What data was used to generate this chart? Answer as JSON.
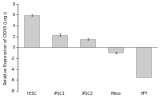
{
  "categories": [
    "hESC",
    "iPSC1",
    "iPSC2",
    "Meso",
    "HFF"
  ],
  "values": [
    5.9,
    2.3,
    1.5,
    -1.0,
    -5.5
  ],
  "errors": [
    0.15,
    0.2,
    0.1,
    0.15,
    0.0
  ],
  "bar_color": "#cccccc",
  "bar_edgecolor": "#999999",
  "ylabel": "Relative Expression of DDX3 (Log$_2$)",
  "ylim": [
    -8,
    8
  ],
  "yticks": [
    -8,
    -6,
    -4,
    -2,
    0,
    2,
    4,
    6,
    8
  ],
  "ylabel_fontsize": 3.8,
  "tick_fontsize": 3.5,
  "xtick_fontsize": 3.5,
  "figsize": [
    2.0,
    1.23
  ],
  "dpi": 100
}
